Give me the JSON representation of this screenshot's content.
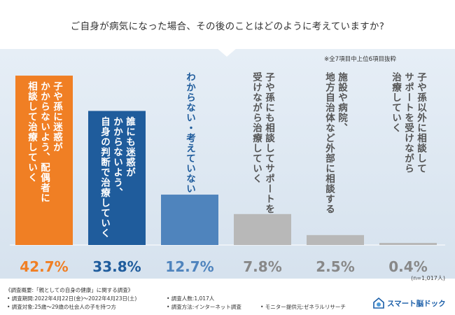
{
  "header": {
    "question": "ご自身が病気になった場合、その後のことはどのように考えていますか?"
  },
  "note_top": "※全7項目中上位6項目抜粋",
  "sample_size": "(n=1,017人)",
  "colors": {
    "orange": "#f07f24",
    "blue": "#1f5c9c",
    "lightblue": "#4f84bd",
    "gray": "#b8b8b8"
  },
  "chart_data": {
    "type": "bar",
    "title": "ご自身が病気になった場合、その後のことはどのように考えていますか?",
    "categories": [
      [
        "子や孫に迷惑が",
        "かからないよう、配偶者に",
        "相談して治療していく"
      ],
      [
        "誰にも迷惑が",
        "かからないよう、",
        "自身の判断で治療していく"
      ],
      [
        "わからない・考えていない"
      ],
      [
        "子や孫にも相談してサポートを",
        "受けながら治療していく"
      ],
      [
        "施設や病院、",
        "地方自治体など外部に相談する"
      ],
      [
        "子や孫以外に相談して",
        "サポートを受けながら",
        "治療していく"
      ]
    ],
    "values": [
      42.7,
      33.8,
      12.7,
      7.8,
      2.5,
      0.4
    ],
    "value_labels": [
      "42.7%",
      "33.8%",
      "12.7%",
      "7.8%",
      "2.5%",
      "0.4%"
    ],
    "colors": [
      "#f07f24",
      "#1f5c9c",
      "#4f84bd",
      "#b8b8b8",
      "#b8b8b8",
      "#b8b8b8"
    ],
    "label_colors": [
      "#f07f24",
      "#1f5c9c",
      "#4f84bd",
      "#888888",
      "#888888",
      "#888888"
    ],
    "text_colors": [
      "#ffffff",
      "#ffffff",
      "#1f5c9c",
      "#555555",
      "#555555",
      "#555555"
    ],
    "ylim": [
      0,
      45
    ],
    "unit": "%"
  },
  "footer": {
    "survey_title": "《調査概要:「親としての自身の健康」に関する調査》",
    "period": "• 調査期間:2022年4月22日(金)〜2022年4月23日(土)",
    "respondents": "• 調査人数:1,017人",
    "target": "• 調査対象:25歳〜29歳の社会人の子を持つ方",
    "method": "• 調査方法:インターネット調査",
    "provider": "• モニター提供元:ゼネラルリサーチ",
    "logo": "スマート脳ドック"
  }
}
